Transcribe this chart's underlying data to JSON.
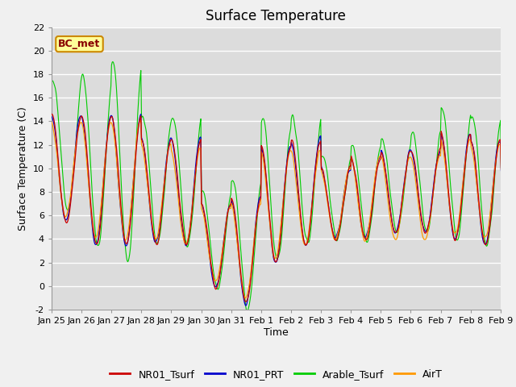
{
  "title": "Surface Temperature",
  "xlabel": "Time",
  "ylabel": "Surface Temperature (C)",
  "annotation": "BC_met",
  "ylim": [
    -2,
    22
  ],
  "yticks": [
    -2,
    0,
    2,
    4,
    6,
    8,
    10,
    12,
    14,
    16,
    18,
    20,
    22
  ],
  "xtick_labels": [
    "Jan 25",
    "Jan 26",
    "Jan 27",
    "Jan 28",
    "Jan 29",
    "Jan 30",
    "Jan 31",
    "Feb 1",
    "Feb 2",
    "Feb 3",
    "Feb 4",
    "Feb 5",
    "Feb 6",
    "Feb 7",
    "Feb 8",
    "Feb 9"
  ],
  "series_colors": {
    "NR01_Tsurf": "#cc0000",
    "NR01_PRT": "#0000cc",
    "Arable_Tsurf": "#00cc00",
    "AirT": "#ff9900"
  },
  "fig_bg_color": "#f0f0f0",
  "plot_bg": "#dcdcdc",
  "annotation_bg": "#ffff99",
  "annotation_border": "#cc8800",
  "annotation_text_color": "#880000",
  "grid_color": "#ffffff",
  "title_fontsize": 12,
  "label_fontsize": 9,
  "tick_fontsize": 8,
  "legend_fontsize": 9
}
